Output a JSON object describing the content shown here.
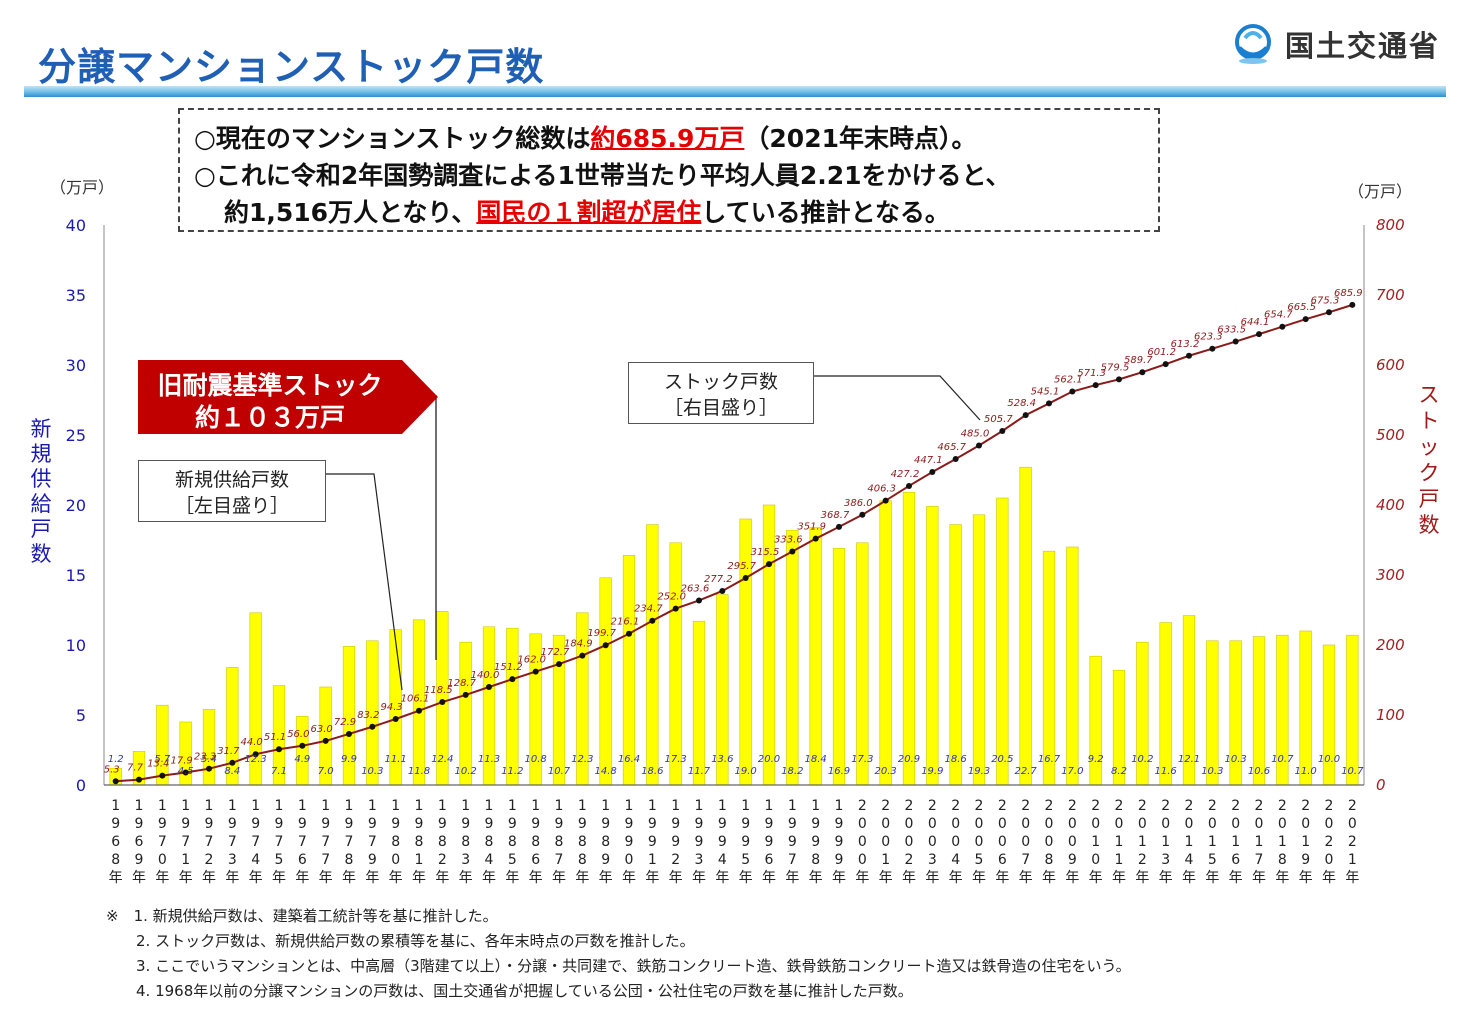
{
  "header": {
    "title": "分譲マンションストック戸数",
    "ministry": "国土交通省",
    "logo_icon": "mlit-logo-icon"
  },
  "summary": {
    "line1_pre": "○現在のマンションストック総数は",
    "line1_red": "約685.9万戸",
    "line1_post": "（2021年末時点）。",
    "line2": "○これに令和2年国勢調査による1世帯当たり平均人員2.21をかけると、",
    "line3_pre": "約1,516万人となり、",
    "line3_red": "国民の１割超が居住",
    "line3_post": "している推計となる。"
  },
  "axes": {
    "left_unit": "（万戸）",
    "right_unit": "（万戸）",
    "left_title": "新規供給戸数",
    "right_title": "ストック戸数",
    "left_ticks": [
      "0",
      "5",
      "10",
      "15",
      "20",
      "25",
      "30",
      "35",
      "40"
    ],
    "right_ticks": [
      "0",
      "100",
      "200",
      "300",
      "400",
      "500",
      "600",
      "700",
      "800"
    ]
  },
  "callouts": {
    "old_standard_line1": "旧耐震基準ストック",
    "old_standard_line2": "約１０３万戸",
    "supply_line1": "新規供給戸数",
    "supply_line2": "［左目盛り］",
    "stock_line1": "ストック戸数",
    "stock_line2": "［右目盛り］"
  },
  "notes": [
    "※　1. 新規供給戸数は、建築着工統計等を基に推計した。",
    "2. ストック戸数は、新規供給戸数の累積等を基に、各年末時点の戸数を推計した。",
    "3. ここでいうマンションとは、中高層（3階建て以上）・分譲・共同建で、鉄筋コンクリート造、鉄骨鉄筋コンクリート造又は鉄骨造の住宅をいう。",
    "4. 1968年以前の分譲マンションの戸数は、国土交通省が把握している公団・公社住宅の戸数を基に推計した戸数。"
  ],
  "colors": {
    "bar": "#ffff00",
    "bar_edge": "#c8c800",
    "line": "#8b1a1a",
    "marker": "#111111",
    "accent_red": "#c00000",
    "title_blue": "#1f5fb4"
  },
  "chart_data": {
    "type": "bar",
    "categories": [
      "1968",
      "1969",
      "1970",
      "1971",
      "1972",
      "1973",
      "1974",
      "1975",
      "1976",
      "1977",
      "1978",
      "1979",
      "1980",
      "1981",
      "1982",
      "1983",
      "1984",
      "1985",
      "1986",
      "1987",
      "1988",
      "1989",
      "1990",
      "1991",
      "1992",
      "1993",
      "1994",
      "1995",
      "1996",
      "1997",
      "1998",
      "1999",
      "2000",
      "2001",
      "2002",
      "2003",
      "2004",
      "2005",
      "2006",
      "2007",
      "2008",
      "2009",
      "2010",
      "2011",
      "2012",
      "2013",
      "2014",
      "2015",
      "2016",
      "2017",
      "2018",
      "2019",
      "2020",
      "2021"
    ],
    "x_label_suffix": "年",
    "series": [
      {
        "name": "新規供給戸数",
        "axis": "left",
        "type": "bar",
        "values": [
          1.2,
          2.4,
          5.7,
          4.5,
          5.4,
          8.4,
          12.3,
          7.1,
          4.9,
          7.0,
          9.9,
          10.3,
          11.1,
          11.8,
          12.4,
          10.2,
          11.3,
          11.2,
          10.8,
          10.7,
          12.3,
          14.8,
          16.4,
          18.6,
          17.3,
          11.7,
          13.6,
          19.0,
          20.0,
          18.2,
          18.4,
          16.9,
          17.3,
          20.3,
          20.9,
          19.9,
          18.6,
          19.3,
          20.5,
          22.7,
          16.7,
          17.0,
          9.2,
          8.2,
          10.2,
          11.6,
          12.1,
          10.3,
          10.3,
          10.6,
          10.7,
          11.0,
          10.0,
          10.7
        ],
        "labels": [
          "1.2",
          "",
          "5.7",
          "4.5",
          "5.4",
          "8.4",
          "12.3",
          "7.1",
          "4.9",
          "7.0",
          "9.9",
          "10.3",
          "11.1",
          "11.8",
          "12.4",
          "10.2",
          "11.3",
          "11.2",
          "10.8",
          "10.7",
          "12.3",
          "14.8",
          "16.4",
          "18.6",
          "17.3",
          "11.7",
          "13.6",
          "19.0",
          "20.0",
          "18.2",
          "18.4",
          "16.9",
          "17.3",
          "20.3",
          "20.9",
          "19.9",
          "18.6",
          "19.3",
          "20.5",
          "22.7",
          "16.7",
          "17.0",
          "9.2",
          "8.2",
          "10.2",
          "11.6",
          "12.1",
          "10.3",
          "10.3",
          "10.6",
          "10.7",
          "11.0",
          "10.0",
          "10.7"
        ]
      },
      {
        "name": "ストック戸数",
        "axis": "right",
        "type": "line",
        "values": [
          5.3,
          7.7,
          13.4,
          17.9,
          23.3,
          31.7,
          44.0,
          51.1,
          56.0,
          63.0,
          72.9,
          83.2,
          94.3,
          106.1,
          118.5,
          128.7,
          140.0,
          151.2,
          162.0,
          172.7,
          184.9,
          199.7,
          216.1,
          234.7,
          252.0,
          263.6,
          277.2,
          295.7,
          315.5,
          333.6,
          351.9,
          368.7,
          386.0,
          406.3,
          427.2,
          447.1,
          465.7,
          485.0,
          505.7,
          528.4,
          545.1,
          562.1,
          571.3,
          579.5,
          589.7,
          601.2,
          613.2,
          623.3,
          633.5,
          644.1,
          654.7,
          665.5,
          675.3,
          685.9
        ],
        "labels": [
          "5.3",
          "7.7",
          "13.4",
          "17.9",
          "23.3",
          "31.7",
          "44.0",
          "51.1",
          "56.0",
          "63.0",
          "72.9",
          "83.2",
          "94.3",
          "106.1",
          "118.5",
          "128.7",
          "140.0",
          "151.2",
          "162.0",
          "172.7",
          "184.9",
          "199.7",
          "216.1",
          "234.7",
          "252.0",
          "263.6",
          "277.2",
          "295.7",
          "315.5",
          "333.6",
          "351.9",
          "368.7",
          "386.0",
          "406.3",
          "427.2",
          "447.1",
          "465.7",
          "485.0",
          "505.7",
          "528.4",
          "545.1",
          "562.1",
          "571.3",
          "579.5",
          "589.7",
          "601.2",
          "613.2",
          "623.3",
          "633.5",
          "644.1",
          "654.7",
          "665.5",
          "675.3",
          "685.9"
        ]
      }
    ],
    "ylim_left": [
      0,
      40
    ],
    "ylim_right": [
      0,
      800
    ],
    "grid": false
  }
}
